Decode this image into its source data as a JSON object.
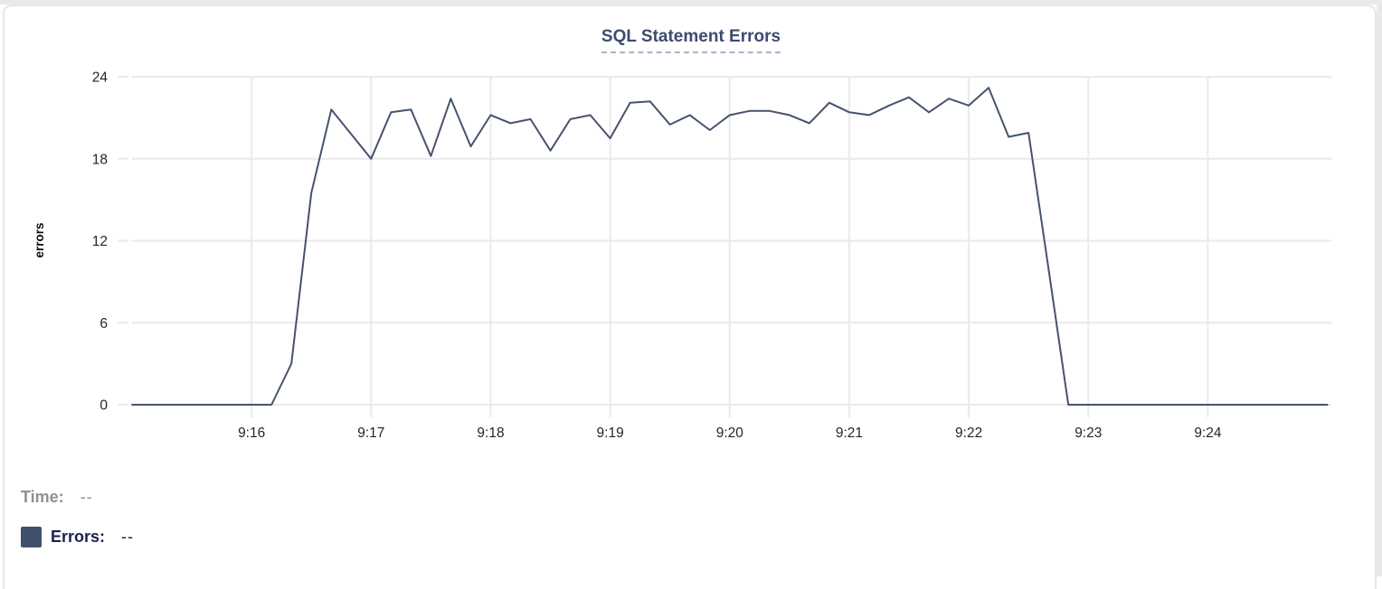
{
  "chart_data": {
    "type": "line",
    "title": "SQL Statement Errors",
    "xlabel": "",
    "ylabel": "errors",
    "ylim": [
      0,
      24
    ],
    "y_ticks": [
      0,
      6,
      12,
      18,
      24
    ],
    "x_ticks": [
      "9:16",
      "9:17",
      "9:18",
      "9:19",
      "9:20",
      "9:21",
      "9:22",
      "9:23",
      "9:24"
    ],
    "x_domain": [
      "9:15:00",
      "9:25:02"
    ],
    "grid": true,
    "legend_position": "none",
    "series": [
      {
        "name": "Errors",
        "color": "#46536e",
        "points": [
          [
            "9:15:00",
            0
          ],
          [
            "9:15:10",
            0
          ],
          [
            "9:15:20",
            0
          ],
          [
            "9:15:30",
            0
          ],
          [
            "9:15:40",
            0
          ],
          [
            "9:15:50",
            0
          ],
          [
            "9:16:00",
            0
          ],
          [
            "9:16:10",
            0
          ],
          [
            "9:16:20",
            3
          ],
          [
            "9:16:30",
            15.5
          ],
          [
            "9:16:40",
            21.6
          ],
          [
            "9:16:50",
            19.8
          ],
          [
            "9:17:00",
            18
          ],
          [
            "9:17:10",
            21.4
          ],
          [
            "9:17:20",
            21.6
          ],
          [
            "9:17:30",
            18.2
          ],
          [
            "9:17:40",
            22.4
          ],
          [
            "9:17:50",
            18.9
          ],
          [
            "9:18:00",
            21.2
          ],
          [
            "9:18:10",
            20.6
          ],
          [
            "9:18:20",
            20.9
          ],
          [
            "9:18:30",
            18.6
          ],
          [
            "9:18:40",
            20.9
          ],
          [
            "9:18:50",
            21.2
          ],
          [
            "9:19:00",
            19.5
          ],
          [
            "9:19:10",
            22.1
          ],
          [
            "9:19:20",
            22.2
          ],
          [
            "9:19:30",
            20.5
          ],
          [
            "9:19:40",
            21.2
          ],
          [
            "9:19:50",
            20.1
          ],
          [
            "9:20:00",
            21.2
          ],
          [
            "9:20:10",
            21.5
          ],
          [
            "9:20:20",
            21.5
          ],
          [
            "9:20:30",
            21.2
          ],
          [
            "9:20:40",
            20.6
          ],
          [
            "9:20:50",
            22.1
          ],
          [
            "9:21:00",
            21.4
          ],
          [
            "9:21:10",
            21.2
          ],
          [
            "9:21:20",
            21.9
          ],
          [
            "9:21:30",
            22.5
          ],
          [
            "9:21:40",
            21.4
          ],
          [
            "9:21:50",
            22.4
          ],
          [
            "9:22:00",
            21.9
          ],
          [
            "9:22:10",
            23.2
          ],
          [
            "9:22:20",
            19.6
          ],
          [
            "9:22:30",
            19.9
          ],
          [
            "9:22:40",
            10
          ],
          [
            "9:22:50",
            0
          ],
          [
            "9:23:00",
            0
          ],
          [
            "9:23:10",
            0
          ],
          [
            "9:23:20",
            0
          ],
          [
            "9:23:30",
            0
          ],
          [
            "9:23:40",
            0
          ],
          [
            "9:23:50",
            0
          ],
          [
            "9:24:00",
            0
          ],
          [
            "9:24:10",
            0
          ],
          [
            "9:24:20",
            0
          ],
          [
            "9:24:30",
            0
          ],
          [
            "9:24:40",
            0
          ],
          [
            "9:24:50",
            0
          ],
          [
            "9:25:00",
            0
          ]
        ]
      }
    ]
  },
  "title": "SQL Statement Errors",
  "axes": {
    "y_label": "errors"
  },
  "tooltip": {
    "time_label": "Time:",
    "time_value": "--",
    "errors_label": "Errors:",
    "errors_value": "--",
    "swatch_color": "#41506b"
  },
  "colors": {
    "line": "#46536e",
    "gridline": "#eaeaec",
    "title_text": "#3d4c6d",
    "title_underline": "#a9b4cb",
    "time_label_gray": "#8f9094",
    "errors_label_navy": "#1a2150",
    "card_border": "#e7e7ea"
  }
}
